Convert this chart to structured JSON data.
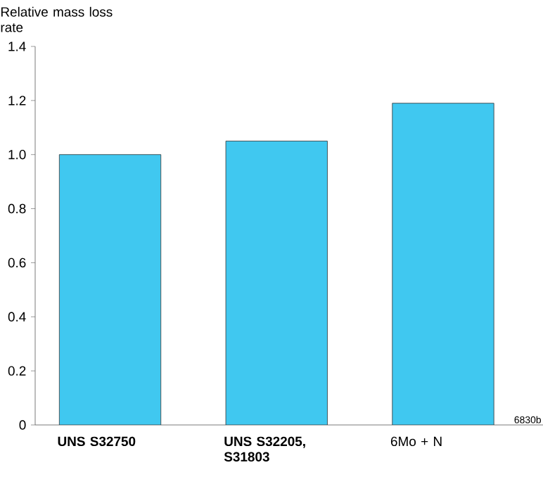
{
  "chart_data": {
    "type": "bar",
    "ylabel": "Relative mass loss rate",
    "categories": [
      "**UNS S32750**",
      "**UNS S32205, S31803**",
      "6Mo + N"
    ],
    "values": [
      1.0,
      1.05,
      1.19
    ],
    "color": "#40c8f0",
    "ylim": [
      0,
      1.4
    ],
    "yticks": [
      0,
      0.2,
      0.4,
      0.6,
      0.8,
      {
        "value": 1.0,
        "label": "1.0"
      },
      1.2,
      1.4
    ],
    "annotations": [
      "6830b"
    ],
    "grid": false
  }
}
